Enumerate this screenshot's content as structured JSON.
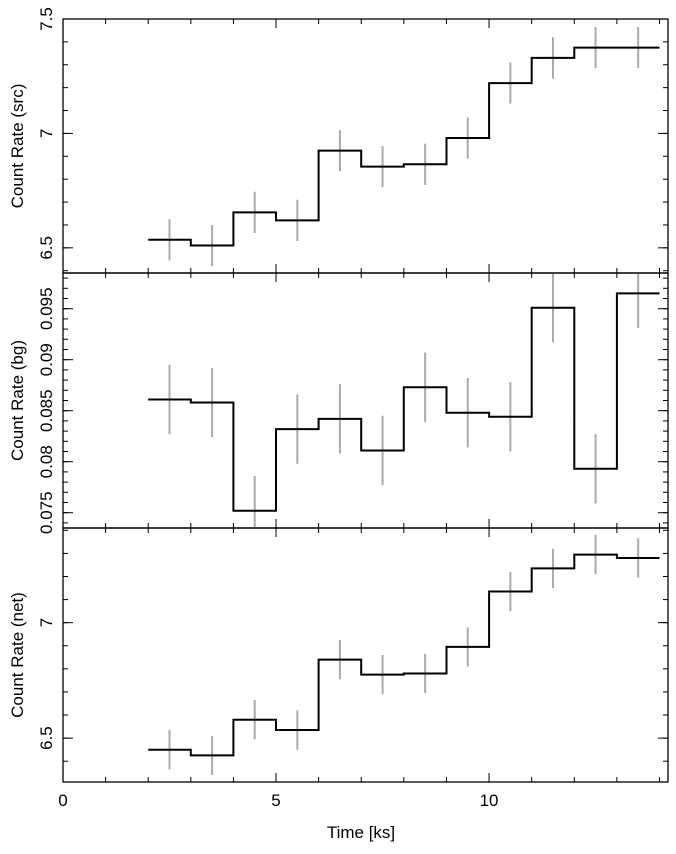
{
  "chart_data": {
    "type": "line",
    "xlabel": "Time [ks]",
    "xlim": [
      0,
      14.2
    ],
    "xticks": [
      0,
      5,
      10
    ],
    "bins": [
      2,
      3,
      4,
      5,
      6,
      7,
      8,
      9,
      10,
      11,
      12,
      13,
      14
    ],
    "x": [
      2.5,
      3.5,
      4.5,
      5.5,
      6.5,
      7.5,
      8.5,
      9.5,
      10.5,
      11.5,
      12.5,
      13.5
    ],
    "colors": {
      "step": "#000000",
      "error_bar": "#aaaaaa"
    },
    "grid": false,
    "panels": [
      {
        "ylabel": "Count Rate (src)",
        "ylim": [
          6.39,
          7.5
        ],
        "yticks": [
          6.5,
          7,
          7.5
        ],
        "ytick_labels": [
          "6.5",
          "7",
          "7.5"
        ],
        "values": [
          6.535,
          6.51,
          6.655,
          6.62,
          6.925,
          6.855,
          6.865,
          6.98,
          7.22,
          7.33,
          7.375,
          7.375
        ],
        "errors": [
          0.09,
          0.09,
          0.09,
          0.09,
          0.09,
          0.09,
          0.09,
          0.09,
          0.09,
          0.09,
          0.09,
          0.09
        ]
      },
      {
        "ylabel": "Count Rate (bg)",
        "ylim": [
          0.0735,
          0.0985
        ],
        "yticks": [
          0.075,
          0.08,
          0.085,
          0.09,
          0.095
        ],
        "ytick_labels": [
          "0.075",
          "0.08",
          "0.085",
          "0.09",
          "0.095"
        ],
        "values": [
          0.0861,
          0.0858,
          0.0752,
          0.0832,
          0.0842,
          0.0811,
          0.0873,
          0.0848,
          0.0844,
          0.0951,
          0.0793,
          0.0965
        ],
        "errors": [
          0.0034,
          0.0034,
          0.0034,
          0.0034,
          0.0034,
          0.0034,
          0.0034,
          0.0034,
          0.0034,
          0.0034,
          0.0034,
          0.0034
        ]
      },
      {
        "ylabel": "Count Rate (net)",
        "ylim": [
          6.31,
          7.41
        ],
        "yticks": [
          6.5,
          7
        ],
        "ytick_labels": [
          "6.5",
          "7"
        ],
        "values": [
          6.45,
          6.425,
          6.58,
          6.535,
          6.84,
          6.775,
          6.78,
          6.895,
          7.135,
          7.235,
          7.295,
          7.28
        ],
        "errors": [
          0.085,
          0.085,
          0.085,
          0.085,
          0.085,
          0.085,
          0.085,
          0.085,
          0.085,
          0.085,
          0.085,
          0.085
        ]
      }
    ]
  }
}
